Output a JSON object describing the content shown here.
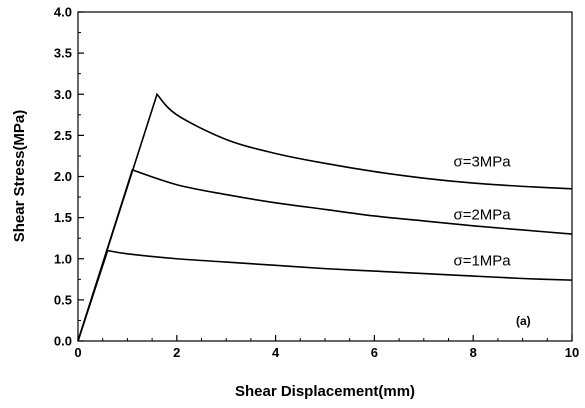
{
  "chart_data": {
    "type": "line",
    "title": "",
    "xlabel": "Shear Displacement(mm)",
    "ylabel": "Shear Stress(MPa)",
    "xlim": [
      0,
      10
    ],
    "ylim": [
      0,
      4.0
    ],
    "x_ticks": [
      0,
      2,
      4,
      6,
      8,
      10
    ],
    "x_tick_labels": [
      "0",
      "2",
      "4",
      "6",
      "8",
      "10"
    ],
    "y_ticks": [
      0,
      0.5,
      1.0,
      1.5,
      2.0,
      2.5,
      3.0,
      3.5,
      4.0
    ],
    "y_tick_labels": [
      "0.0",
      "0.5",
      "1.0",
      "1.5",
      "2.0",
      "2.5",
      "3.0",
      "3.5",
      "4.0"
    ],
    "grid": false,
    "legend": "none",
    "panel_label": "(a)",
    "series": [
      {
        "name": "σ=3MPa",
        "x": [
          0,
          1.6,
          2,
          3,
          4,
          5,
          6,
          7,
          8,
          9,
          10
        ],
        "values": [
          0,
          3.0,
          2.75,
          2.45,
          2.28,
          2.16,
          2.06,
          1.98,
          1.92,
          1.88,
          1.85
        ]
      },
      {
        "name": "σ=2MPa",
        "x": [
          0,
          1.1,
          2,
          3,
          4,
          5,
          6,
          7,
          8,
          9,
          10
        ],
        "values": [
          0,
          2.08,
          1.9,
          1.78,
          1.68,
          1.6,
          1.52,
          1.46,
          1.4,
          1.35,
          1.3
        ]
      },
      {
        "name": "σ=1MPa",
        "x": [
          0,
          0.6,
          1,
          2,
          3,
          4,
          5,
          6,
          7,
          8,
          9,
          10
        ],
        "values": [
          0,
          1.1,
          1.06,
          1.0,
          0.96,
          0.92,
          0.88,
          0.85,
          0.82,
          0.79,
          0.76,
          0.74
        ]
      }
    ],
    "series_labels": [
      {
        "text": "σ=3MPa",
        "x": 7.6,
        "y": 2.12
      },
      {
        "text": "σ=2MPa",
        "x": 7.6,
        "y": 1.48
      },
      {
        "text": "σ=1MPa",
        "x": 7.6,
        "y": 0.92
      }
    ]
  }
}
